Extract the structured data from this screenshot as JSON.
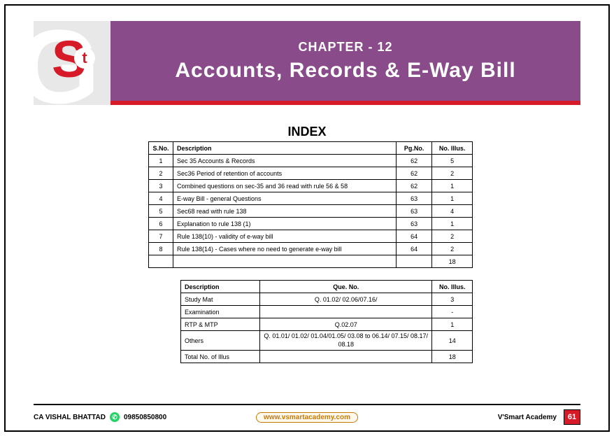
{
  "colors": {
    "banner_bg": "#8a4b8a",
    "accent_red": "#d71a28",
    "page_bg": "#ffffff",
    "border": "#000000",
    "link_border": "#c97a00",
    "whatsapp": "#25d366"
  },
  "header": {
    "chapter_label": "CHAPTER - 12",
    "chapter_title": "Accounts, Records & E-Way Bill"
  },
  "index_heading": "INDEX",
  "main_table": {
    "headers": {
      "sno": "S.No.",
      "desc": "Description",
      "pg": "Pg.No.",
      "illus": "No. Illus."
    },
    "rows": [
      {
        "sno": "1",
        "desc": "Sec 35 Accounts & Records",
        "pg": "62",
        "illus": "5"
      },
      {
        "sno": "2",
        "desc": "Sec36 Period of retention of accounts",
        "pg": "62",
        "illus": "2"
      },
      {
        "sno": "3",
        "desc": "Combined questions on sec-35 and 36 read with rule 56 & 58",
        "pg": "62",
        "illus": "1"
      },
      {
        "sno": "4",
        "desc": "E-way Bill - general Questions",
        "pg": "63",
        "illus": "1"
      },
      {
        "sno": "5",
        "desc": "Sec68 read with rule 138",
        "pg": "63",
        "illus": "4"
      },
      {
        "sno": "6",
        "desc": "Explanation to rule 138 (1)",
        "pg": "63",
        "illus": "1"
      },
      {
        "sno": "7",
        "desc": "Rule 138(10) - validity of e-way bill",
        "pg": "64",
        "illus": "2"
      },
      {
        "sno": "8",
        "desc": "Rule 138(14) - Cases where no need to generate e-way bill",
        "pg": "64",
        "illus": "2"
      }
    ],
    "total_illus": "18"
  },
  "summary_table": {
    "headers": {
      "desc": "Description",
      "que": "Que. No.",
      "illus": "No. Illus."
    },
    "rows": [
      {
        "desc": "Study Mat",
        "que": "Q. 01.02/ 02.06/07.16/",
        "illus": "3"
      },
      {
        "desc": "Examination",
        "que": "",
        "illus": "-"
      },
      {
        "desc": "RTP & MTP",
        "que": "Q.02.07",
        "illus": "1"
      },
      {
        "desc": "Others",
        "que": "Q. 01.01/ 01.02/ 01.04/01.05/ 03.08 to 06.14/ 07.15/ 08.17/ 08.18",
        "illus": "14"
      }
    ],
    "total_label": "Total No. of Illus",
    "total_illus": "18"
  },
  "footer": {
    "author": "CA VISHAL BHATTAD",
    "phone": "09850850800",
    "url": "www.vsmartacademy.com",
    "subline": "",
    "brand": "V'Smart Academy",
    "page_no": "61"
  }
}
